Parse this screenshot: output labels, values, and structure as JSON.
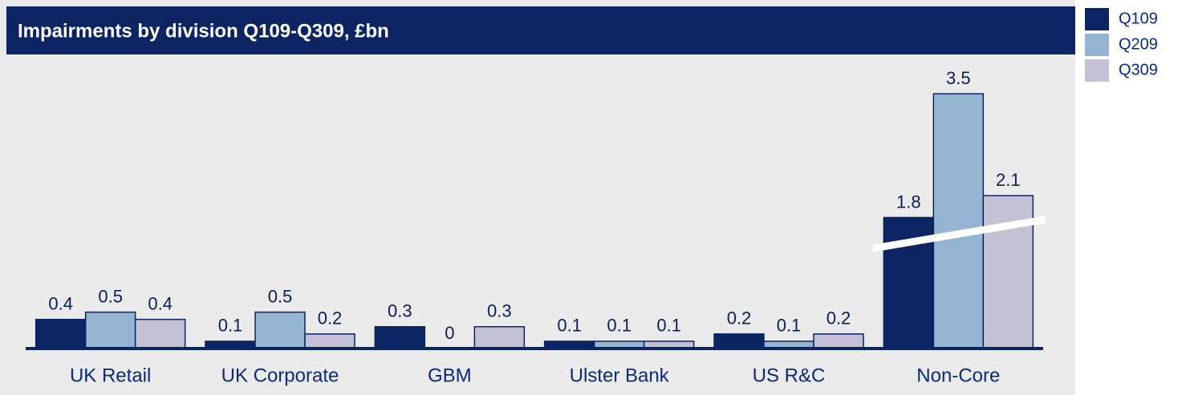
{
  "chart_data": {
    "type": "bar",
    "title": "Impairments by division Q109-Q309, £bn",
    "categories": [
      "UK Retail",
      "UK Corporate",
      "GBM",
      "Ulster Bank",
      "US R&C",
      "Non-Core"
    ],
    "series": [
      {
        "name": "Q109",
        "color": "#0c2461",
        "values": [
          0.4,
          0.1,
          0.3,
          0.1,
          0.2,
          1.8
        ]
      },
      {
        "name": "Q209",
        "color": "#94b4d2",
        "values": [
          0.5,
          0.5,
          0,
          0.1,
          0.1,
          3.5
        ]
      },
      {
        "name": "Q309",
        "color": "#c3c1d6",
        "values": [
          0.4,
          0.2,
          0.3,
          0.1,
          0.2,
          2.1
        ]
      }
    ],
    "ylim": [
      0,
      3.5
    ],
    "legend": "right"
  }
}
